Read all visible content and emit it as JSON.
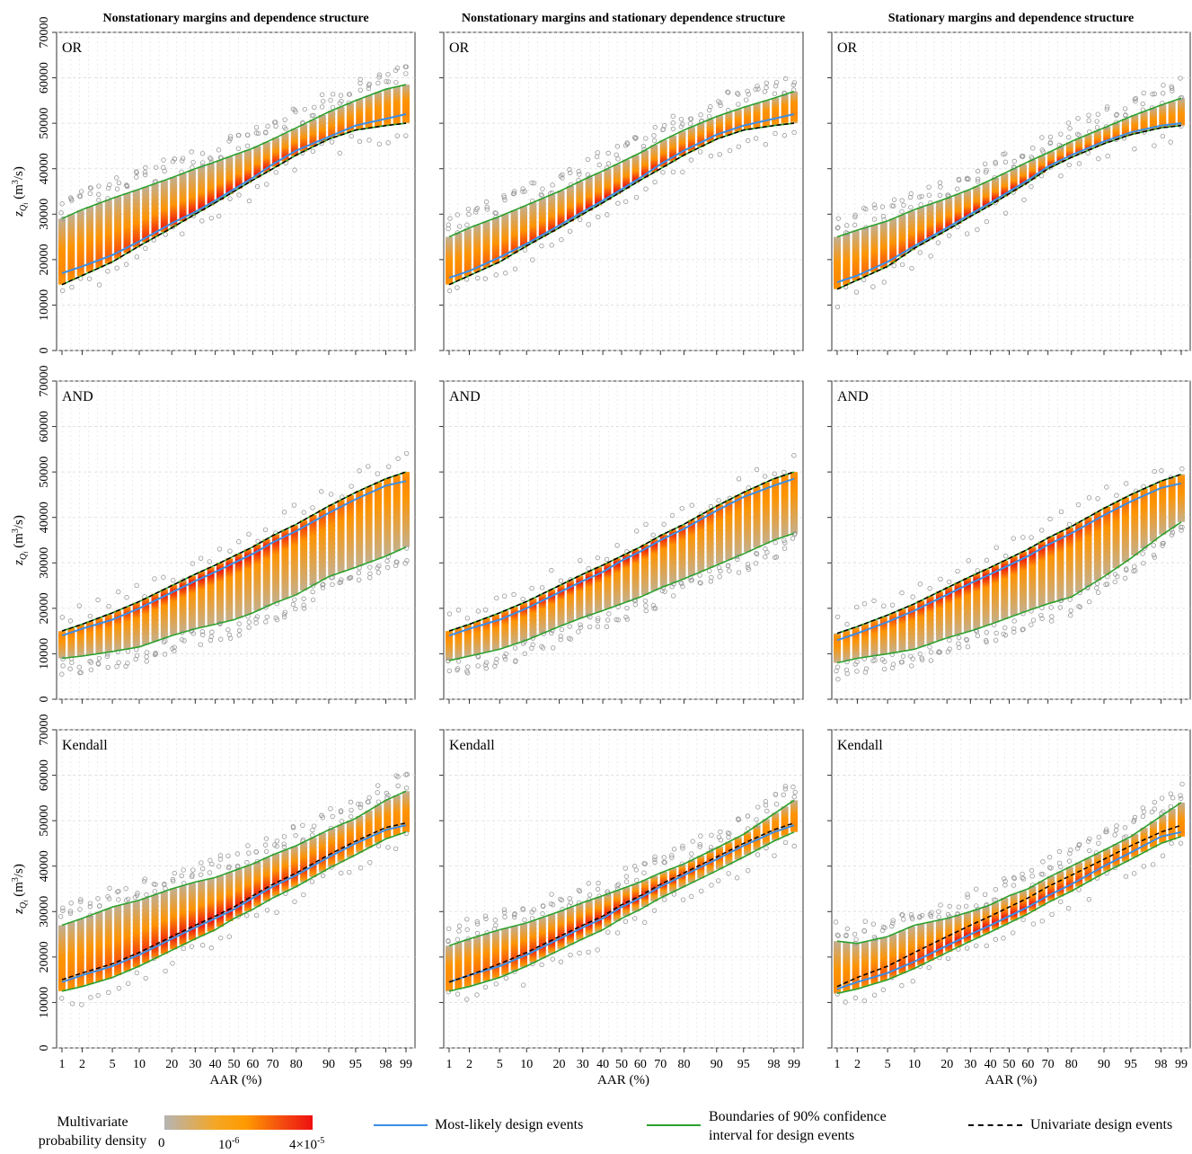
{
  "columns": [
    "Nonstationary margins and dependence structure",
    "Nonstationary margins and stationary dependence structure",
    "Stationary margins and dependence structure"
  ],
  "rows": [
    "OR",
    "AND",
    "Kendall"
  ],
  "y_label_main": "z",
  "y_label_sub": "Q",
  "y_label_subsub": "i",
  "y_label_unit": "(m",
  "y_label_unit_sup": "3",
  "y_label_unit_end": "/s)",
  "x_label": "AAR (%)",
  "legend": {
    "density_title": "Multivariate probability density",
    "cbar_labels": [
      "0",
      "10",
      "4×10"
    ],
    "cbar_exp": [
      "",
      "-6",
      "-5"
    ],
    "most_likely": "Most-likely design events",
    "ci": "Boundaries of 90% confidence interval for design events",
    "univariate": "Univariate design events"
  },
  "colors": {
    "most_likely": "#3a8ee6",
    "ci": "#2ca02c",
    "univariate": "#000000",
    "density_low": "#b4b4b4",
    "density_mid": "#ff9a00",
    "density_high": "#ee1010"
  },
  "chart_data": {
    "type": "scatter",
    "ylim": [
      0,
      70000
    ],
    "yticks": [
      0,
      10000,
      20000,
      30000,
      40000,
      50000,
      60000,
      70000
    ],
    "xticks": [
      1,
      2,
      5,
      10,
      20,
      30,
      40,
      50,
      60,
      70,
      80,
      90,
      95,
      98,
      99
    ],
    "x_scale": "probit",
    "grid": true,
    "panels": [
      {
        "row": "OR",
        "col": 0,
        "univariate": [
          14500,
          16500,
          19500,
          23000,
          27000,
          30000,
          32500,
          35000,
          37500,
          40000,
          43000,
          46500,
          48500,
          49500,
          50000
        ],
        "most_likely": [
          17000,
          18500,
          21000,
          24000,
          28000,
          30500,
          33000,
          35500,
          38000,
          41000,
          44000,
          47000,
          49500,
          51000,
          52000
        ],
        "ci_upper": [
          29000,
          31000,
          33500,
          35500,
          38000,
          40000,
          41500,
          43000,
          44500,
          46500,
          49000,
          52500,
          55000,
          57500,
          58500
        ],
        "ci_lower": [
          14500,
          16500,
          19500,
          23000,
          27000,
          30000,
          32500,
          35000,
          37500,
          40000,
          43000,
          46500,
          48500,
          49500,
          50000
        ]
      },
      {
        "row": "OR",
        "col": 1,
        "univariate": [
          14500,
          16500,
          19500,
          23000,
          27000,
          30000,
          32500,
          35000,
          37500,
          40000,
          43000,
          46500,
          48500,
          49500,
          50000
        ],
        "most_likely": [
          16000,
          17500,
          20500,
          23500,
          27500,
          30500,
          33000,
          35500,
          38000,
          41000,
          44000,
          47500,
          49500,
          51000,
          52000
        ],
        "ci_upper": [
          25000,
          27000,
          29500,
          32000,
          35000,
          37500,
          39500,
          41500,
          43500,
          46000,
          48500,
          51500,
          53500,
          55500,
          57000
        ],
        "ci_lower": [
          14500,
          16500,
          19500,
          23000,
          27000,
          30000,
          32500,
          35000,
          37500,
          40000,
          43000,
          46500,
          48500,
          49500,
          50000
        ]
      },
      {
        "row": "OR",
        "col": 2,
        "univariate": [
          13500,
          15500,
          18500,
          22500,
          26500,
          29500,
          32000,
          34500,
          37000,
          40000,
          42500,
          45500,
          47500,
          49000,
          49500
        ],
        "most_likely": [
          15000,
          16500,
          19500,
          23000,
          27000,
          30000,
          32500,
          35000,
          37500,
          40500,
          43000,
          46000,
          48000,
          49500,
          50000
        ],
        "ci_upper": [
          25000,
          26500,
          28500,
          31000,
          33500,
          35500,
          37500,
          39500,
          41500,
          43500,
          46000,
          49000,
          51500,
          54000,
          55500
        ],
        "ci_lower": [
          13500,
          15500,
          18500,
          22500,
          26500,
          29500,
          32000,
          34500,
          37000,
          40000,
          42500,
          45500,
          47500,
          49000,
          49500
        ]
      },
      {
        "row": "AND",
        "col": 0,
        "univariate": [
          15000,
          16500,
          19000,
          21500,
          25000,
          27500,
          29500,
          31500,
          33500,
          36000,
          38500,
          42500,
          45500,
          48500,
          50000
        ],
        "most_likely": [
          14000,
          15500,
          17500,
          20000,
          23500,
          26000,
          28000,
          30000,
          32000,
          34500,
          37000,
          41000,
          44000,
          47000,
          48000
        ],
        "ci_lower": [
          9000,
          9500,
          10500,
          11500,
          14000,
          15500,
          16500,
          17500,
          19000,
          21000,
          23000,
          27000,
          29000,
          31500,
          33500
        ],
        "ci_upper": [
          15000,
          16500,
          19000,
          21500,
          25000,
          27500,
          29500,
          31500,
          33500,
          36000,
          38500,
          42500,
          45500,
          48500,
          50000
        ]
      },
      {
        "row": "AND",
        "col": 1,
        "univariate": [
          15000,
          16500,
          19000,
          21500,
          25000,
          27500,
          29500,
          31500,
          33500,
          36000,
          38500,
          42500,
          45500,
          48500,
          50000
        ],
        "most_likely": [
          14000,
          15500,
          17500,
          20000,
          23500,
          26000,
          28000,
          30500,
          32500,
          35000,
          37500,
          41500,
          44500,
          47000,
          48500
        ],
        "ci_lower": [
          8500,
          9500,
          11000,
          13000,
          16000,
          18000,
          19500,
          21000,
          22500,
          24500,
          26500,
          29500,
          32000,
          35000,
          36500
        ],
        "ci_upper": [
          15000,
          16500,
          19000,
          21500,
          25000,
          27500,
          29500,
          31500,
          33500,
          36000,
          38500,
          42500,
          45500,
          48500,
          50000
        ]
      },
      {
        "row": "AND",
        "col": 2,
        "univariate": [
          14500,
          16000,
          18500,
          21000,
          24500,
          27000,
          29000,
          31000,
          33000,
          35500,
          38000,
          42000,
          45000,
          48000,
          49500
        ],
        "most_likely": [
          13000,
          14500,
          17000,
          19500,
          23000,
          25500,
          27500,
          29500,
          31500,
          34000,
          36500,
          40500,
          43500,
          46500,
          47500
        ],
        "ci_lower": [
          8000,
          9000,
          10000,
          11000,
          13500,
          15000,
          16500,
          18000,
          19500,
          21000,
          22500,
          27000,
          31000,
          36000,
          39000
        ],
        "ci_upper": [
          14500,
          16000,
          18500,
          21000,
          24500,
          27000,
          29000,
          31000,
          33000,
          35500,
          38000,
          42000,
          45000,
          48000,
          49500
        ]
      },
      {
        "row": "Kendall",
        "col": 0,
        "univariate": [
          15000,
          16500,
          18500,
          21000,
          24500,
          27000,
          29000,
          31000,
          33500,
          36000,
          38500,
          42500,
          45500,
          48500,
          49500
        ],
        "most_likely": [
          14500,
          16000,
          18000,
          20500,
          24000,
          26500,
          28500,
          30500,
          33000,
          35500,
          38000,
          42000,
          45000,
          48000,
          49000
        ],
        "ci_upper": [
          27000,
          28500,
          31000,
          32500,
          35000,
          36500,
          37500,
          39000,
          40500,
          42500,
          44500,
          48000,
          50500,
          54500,
          56500
        ],
        "ci_lower": [
          12500,
          13500,
          15500,
          18000,
          21500,
          24000,
          26000,
          28500,
          30500,
          33000,
          35500,
          39500,
          42500,
          46000,
          47500
        ]
      },
      {
        "row": "Kendall",
        "col": 1,
        "univariate": [
          14500,
          16000,
          18500,
          21000,
          24500,
          27000,
          29000,
          31500,
          33500,
          36000,
          38500,
          42000,
          45000,
          48000,
          49500
        ],
        "most_likely": [
          14500,
          16000,
          18000,
          20500,
          24000,
          26500,
          28500,
          31000,
          33000,
          35500,
          38000,
          41500,
          44500,
          47500,
          49000
        ],
        "ci_upper": [
          22500,
          24000,
          26000,
          27500,
          30000,
          32000,
          33500,
          35000,
          36500,
          38500,
          40500,
          44000,
          47000,
          51500,
          54500
        ],
        "ci_lower": [
          12500,
          13500,
          15500,
          18000,
          21500,
          24000,
          26000,
          28500,
          30500,
          33000,
          35500,
          39000,
          42000,
          45500,
          47500
        ]
      },
      {
        "row": "Kendall",
        "col": 2,
        "univariate": [
          13500,
          15500,
          18000,
          21000,
          24500,
          27000,
          29000,
          31000,
          33000,
          35500,
          38000,
          41500,
          44500,
          47500,
          49000
        ],
        "most_likely": [
          13000,
          14500,
          16500,
          19000,
          22500,
          25000,
          27000,
          29000,
          31000,
          33500,
          36000,
          40000,
          43000,
          46500,
          47500
        ],
        "ci_upper": [
          23500,
          23000,
          24500,
          27000,
          28500,
          30000,
          31500,
          33500,
          35000,
          37500,
          40000,
          43500,
          46500,
          51000,
          54000
        ],
        "ci_lower": [
          12000,
          13000,
          15000,
          17500,
          21000,
          23500,
          25500,
          27500,
          29500,
          32000,
          34500,
          38500,
          41500,
          45000,
          46500
        ]
      }
    ]
  }
}
